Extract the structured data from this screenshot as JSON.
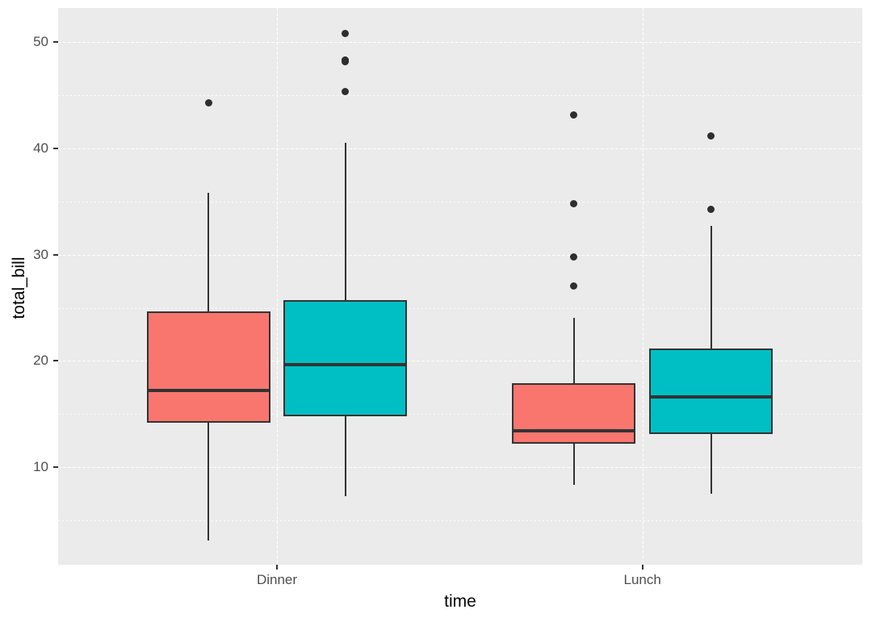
{
  "figure": {
    "x_axis": {
      "title": "time",
      "categories": [
        "Dinner",
        "Lunch"
      ]
    },
    "y_axis": {
      "title": "total_bill",
      "ticks": [
        10,
        20,
        30,
        40,
        50
      ]
    },
    "colors": {
      "panel_background": "#EBEBEB",
      "gridline": "#FFFFFF",
      "box_stroke": "#333333",
      "fill_red": "#F8766D",
      "fill_teal": "#00BFC4",
      "axis_text": "#4D4D4D",
      "axis_title": "#000000",
      "outlier": "#2E2E2E"
    },
    "legend": "none"
  },
  "chart_data": {
    "type": "boxplot",
    "title": "",
    "xlabel": "time",
    "ylabel": "total_bill",
    "categories": [
      "Dinner",
      "Lunch"
    ],
    "ylim": [
      0.83,
      53.2
    ],
    "yticks": [
      10,
      20,
      30,
      40,
      50
    ],
    "yticks_minor": [
      5,
      15,
      25,
      35,
      45
    ],
    "grid": "white dotted major+minor horizontal, major vertical at categories, on gray panel",
    "legend_position": "none",
    "series": [
      {
        "name": "series-red",
        "fill": "#F8766D",
        "boxes": [
          {
            "category": "Dinner",
            "lower_whisker": 3.07,
            "q1": 14.2,
            "median": 17.19,
            "q3": 24.65,
            "upper_whisker": 35.83,
            "outliers": [
              44.3
            ]
          },
          {
            "category": "Lunch",
            "lower_whisker": 8.35,
            "q1": 12.2,
            "median": 13.42,
            "q3": 17.9,
            "upper_whisker": 24.08,
            "outliers": [
              27.05,
              29.8,
              34.83,
              43.11
            ]
          }
        ]
      },
      {
        "name": "series-teal",
        "fill": "#00BFC4",
        "boxes": [
          {
            "category": "Dinner",
            "lower_whisker": 7.25,
            "q1": 14.8,
            "median": 19.65,
            "q3": 25.7,
            "upper_whisker": 40.55,
            "outliers": [
              45.35,
              48.17,
              48.27,
              48.33,
              50.81
            ]
          },
          {
            "category": "Lunch",
            "lower_whisker": 7.51,
            "q1": 13.1,
            "median": 16.58,
            "q3": 21.16,
            "upper_whisker": 32.68,
            "outliers": [
              34.3,
              41.19
            ]
          }
        ]
      }
    ]
  }
}
